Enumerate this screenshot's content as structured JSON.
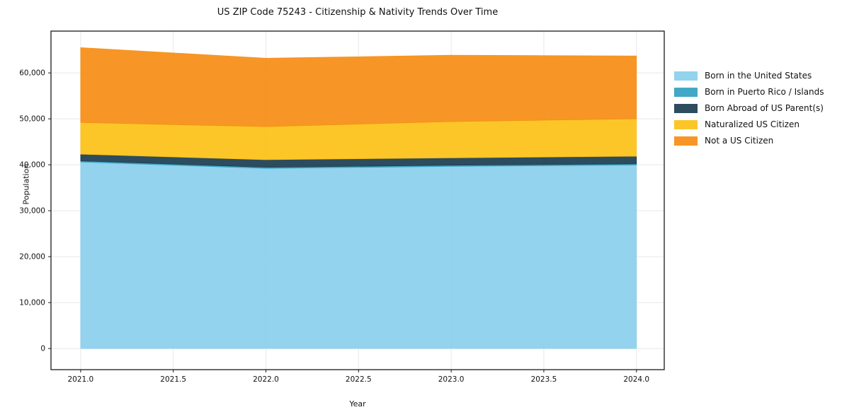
{
  "chart_data": {
    "type": "area",
    "stacked": true,
    "title": "US ZIP Code 75243 - Citizenship & Nativity Trends Over Time",
    "xlabel": "Year",
    "ylabel": "Population",
    "x": [
      2021,
      2022,
      2023,
      2024
    ],
    "series": [
      {
        "name": "Born in the United States",
        "color": "#87CEEB",
        "values": [
          40600,
          39200,
          39650,
          39950
        ]
      },
      {
        "name": "Born in Puerto Rico / Islands",
        "color": "#2E9FC0",
        "values": [
          250,
          250,
          250,
          250
        ]
      },
      {
        "name": "Born Abroad of US Parent(s)",
        "color": "#16384D",
        "values": [
          1450,
          1650,
          1600,
          1650
        ]
      },
      {
        "name": "Naturalized US Citizen",
        "color": "#FDC011",
        "values": [
          6900,
          7200,
          7900,
          8150
        ]
      },
      {
        "name": "Not a US Citizen",
        "color": "#F68B0E",
        "values": [
          16300,
          14900,
          14450,
          13700
        ]
      }
    ],
    "totals": [
      65500,
      63200,
      63850,
      63700
    ],
    "xlim": [
      2020.84,
      2024.15
    ],
    "ylim": [
      -4600,
      69100
    ],
    "x_ticks": [
      2021.0,
      2021.5,
      2022.0,
      2022.5,
      2023.0,
      2023.5,
      2024.0
    ],
    "x_tick_labels": [
      "2021.0",
      "2021.5",
      "2022.0",
      "2022.5",
      "2023.0",
      "2023.5",
      "2024.0"
    ],
    "y_ticks": [
      0,
      10000,
      20000,
      30000,
      40000,
      50000,
      60000
    ],
    "y_tick_labels": [
      "0",
      "10,000",
      "20,000",
      "30,000",
      "40,000",
      "50,000",
      "60,000"
    ],
    "grid": true,
    "grid_color": "#e8e8e8",
    "spine_color": "#1a1a1a",
    "text_color": "#111111",
    "fill_alpha": 0.9,
    "legend_position": "right of plot, no frame"
  }
}
